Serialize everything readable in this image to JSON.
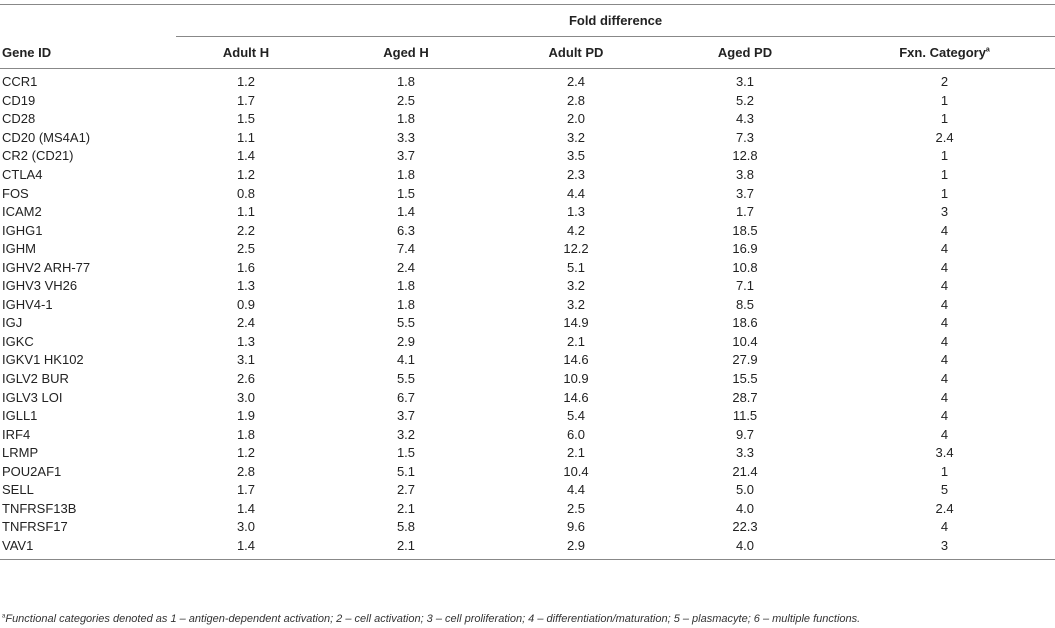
{
  "table": {
    "group_header": "Fold difference",
    "columns": [
      "Gene ID",
      "Adult H",
      "Aged H",
      "Adult PD",
      "Aged PD",
      "Fxn. Category"
    ],
    "category_footnote_mark": "a",
    "rows": [
      [
        "CCR1",
        "1.2",
        "1.8",
        "2.4",
        "3.1",
        "2"
      ],
      [
        "CD19",
        "1.7",
        "2.5",
        "2.8",
        "5.2",
        "1"
      ],
      [
        "CD28",
        "1.5",
        "1.8",
        "2.0",
        "4.3",
        "1"
      ],
      [
        "CD20 (MS4A1)",
        "1.1",
        "3.3",
        "3.2",
        "7.3",
        "2.4"
      ],
      [
        "CR2 (CD21)",
        "1.4",
        "3.7",
        "3.5",
        "12.8",
        "1"
      ],
      [
        "CTLA4",
        "1.2",
        "1.8",
        "2.3",
        "3.8",
        "1"
      ],
      [
        "FOS",
        "0.8",
        "1.5",
        "4.4",
        "3.7",
        "1"
      ],
      [
        "ICAM2",
        "1.1",
        "1.4",
        "1.3",
        "1.7",
        "3"
      ],
      [
        "IGHG1",
        "2.2",
        "6.3",
        "4.2",
        "18.5",
        "4"
      ],
      [
        "IGHM",
        "2.5",
        "7.4",
        "12.2",
        "16.9",
        "4"
      ],
      [
        "IGHV2 ARH-77",
        "1.6",
        "2.4",
        "5.1",
        "10.8",
        "4"
      ],
      [
        "IGHV3 VH26",
        "1.3",
        "1.8",
        "3.2",
        "7.1",
        "4"
      ],
      [
        "IGHV4-1",
        "0.9",
        "1.8",
        "3.2",
        "8.5",
        "4"
      ],
      [
        "IGJ",
        "2.4",
        "5.5",
        "14.9",
        "18.6",
        "4"
      ],
      [
        "IGKC",
        "1.3",
        "2.9",
        "2.1",
        "10.4",
        "4"
      ],
      [
        "IGKV1 HK102",
        "3.1",
        "4.1",
        "14.6",
        "27.9",
        "4"
      ],
      [
        "IGLV2 BUR",
        "2.6",
        "5.5",
        "10.9",
        "15.5",
        "4"
      ],
      [
        "IGLV3 LOI",
        "3.0",
        "6.7",
        "14.6",
        "28.7",
        "4"
      ],
      [
        "IGLL1",
        "1.9",
        "3.7",
        "5.4",
        "11.5",
        "4"
      ],
      [
        "IRF4",
        "1.8",
        "3.2",
        "6.0",
        "9.7",
        "4"
      ],
      [
        "LRMP",
        "1.2",
        "1.5",
        "2.1",
        "3.3",
        "3.4"
      ],
      [
        "POU2AF1",
        "2.8",
        "5.1",
        "10.4",
        "21.4",
        "1"
      ],
      [
        "SELL",
        "1.7",
        "2.7",
        "4.4",
        "5.0",
        "5"
      ],
      [
        "TNFRSF13B",
        "1.4",
        "2.1",
        "2.5",
        "4.0",
        "2.4"
      ],
      [
        "TNFRSF17",
        "3.0",
        "5.8",
        "9.6",
        "22.3",
        "4"
      ],
      [
        "VAV1",
        "1.4",
        "2.1",
        "2.9",
        "4.0",
        "3"
      ]
    ]
  },
  "footnote": {
    "mark": "a",
    "text": "Functional categories denoted as 1 – antigen-dependent activation; 2 – cell activation; 3 – cell proliferation; 4 – differentiation/maturation; 5 – plasmacyte; 6 – multiple functions."
  }
}
